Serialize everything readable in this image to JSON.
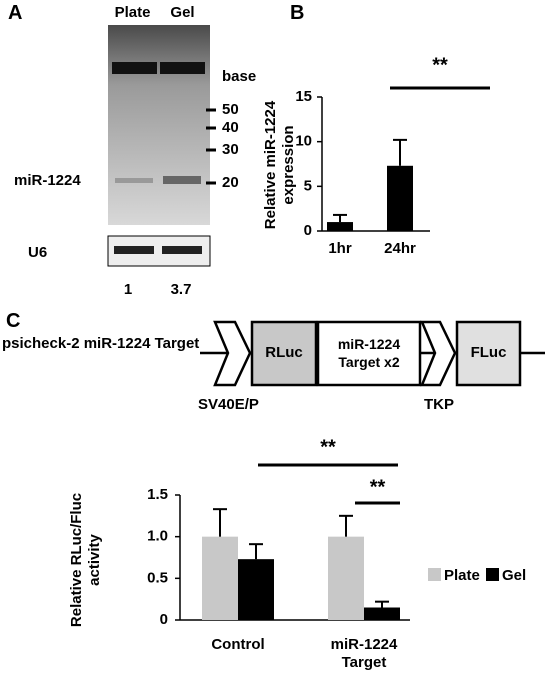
{
  "panel_labels": [
    "A",
    "B",
    "C"
  ],
  "gel": {
    "lanes": [
      "Plate",
      "Gel"
    ],
    "size_unit": "base",
    "size_markers": [
      50,
      40,
      30,
      20
    ],
    "band_label": "miR-1224",
    "loading_control": "U6",
    "quantification": [
      1,
      3.7
    ]
  },
  "construct": {
    "name": "psicheck-2 miR-1224 Target",
    "boxes": [
      "RLuc",
      "miR-1224 Target x2",
      "FLuc"
    ],
    "promoters": [
      "SV40E/P",
      "TKP"
    ]
  },
  "chart_data": [
    {
      "type": "bar",
      "ylabel": "Relative miR-1224 expression",
      "categories": [
        "1hr",
        "24hr"
      ],
      "values": [
        1.0,
        7.3
      ],
      "errors": [
        0.8,
        2.9
      ],
      "color": "#000000",
      "ylim": [
        0,
        15
      ],
      "yticks": [
        0,
        5,
        10,
        15
      ],
      "annotations": [
        "**"
      ]
    },
    {
      "type": "grouped_bar",
      "ylabel": "Relative RLuc/Fluc activity",
      "categories": [
        "Control",
        "miR-1224 Target"
      ],
      "series": [
        {
          "name": "Plate",
          "color": "#c8c8c8",
          "values": [
            1.0,
            1.0
          ],
          "errors": [
            0.33,
            0.25
          ]
        },
        {
          "name": "Gel",
          "color": "#000000",
          "values": [
            0.73,
            0.15
          ],
          "errors": [
            0.18,
            0.07
          ]
        }
      ],
      "ylim": [
        0,
        1.5
      ],
      "yticks": [
        0,
        0.5,
        {
          "value": 1,
          "label": "1.0"
        },
        1.5
      ],
      "annotations": [
        "**",
        "**"
      ],
      "legend": "right"
    }
  ]
}
